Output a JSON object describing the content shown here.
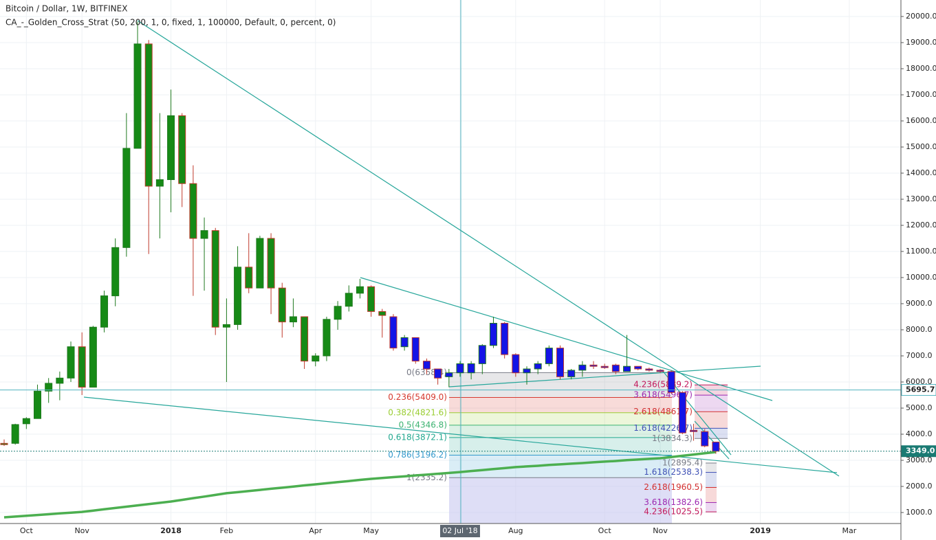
{
  "chart_data": {
    "type": "candlestick",
    "title": "Bitcoin / Dollar, 1W, BITFINEX",
    "subtitle": "CA_-_Golden_Cross_Strat (50, 200, 1, 0, fixed, 1, 100000, Default, 0, percent, 0)",
    "categories": [
      null,
      null,
      "Oct",
      null,
      null,
      null,
      null,
      "Nov",
      null,
      null,
      null,
      null,
      null,
      null,
      null,
      "2018",
      null,
      null,
      null,
      null,
      "Feb",
      null,
      null,
      null,
      null,
      null,
      null,
      null,
      "Apr",
      null,
      null,
      null,
      null,
      "May",
      null,
      null,
      null,
      null,
      null,
      null,
      null,
      "02 Jul '18",
      null,
      null,
      null,
      null,
      "Aug",
      null,
      null,
      null,
      null,
      null,
      null,
      null,
      "Oct",
      null,
      null,
      null,
      null,
      "Nov",
      null,
      null,
      null,
      null,
      null,
      null,
      null,
      null,
      "2019",
      null,
      null,
      null,
      null,
      null,
      null,
      null,
      "Mar",
      null,
      null,
      null
    ],
    "open": [
      3650,
      3650,
      4400,
      4600,
      5650,
      5950,
      6150,
      7350,
      5800,
      8100,
      9300,
      11150,
      14950,
      18950,
      13500,
      13750,
      16200,
      13600,
      11500,
      11800,
      8100,
      8200,
      10400,
      9600,
      11500,
      9600,
      8300,
      8500,
      6800,
      7000,
      8400,
      8900,
      9400,
      9650,
      8700,
      8500,
      7350,
      7700,
      6800,
      6500,
      6200,
      6350,
      6350,
      6700,
      7400,
      8250,
      7050,
      6350,
      6500,
      6700,
      7300,
      6200,
      6450,
      6650,
      6600,
      6650,
      6400,
      6600,
      6500,
      6450,
      6400,
      5600,
      4150,
      4100,
      3700,
      null,
      null,
      null,
      null,
      null,
      null,
      null,
      null,
      null,
      null,
      null,
      null,
      null,
      null,
      null
    ],
    "high": [
      3800,
      4400,
      4650,
      5900,
      6150,
      6400,
      7550,
      7900,
      8150,
      9500,
      11500,
      16300,
      19800,
      19100,
      16300,
      17200,
      16300,
      14300,
      12300,
      11900,
      9200,
      11200,
      11700,
      11600,
      11700,
      9800,
      9200,
      8500,
      7100,
      8500,
      9100,
      9700,
      9950,
      9700,
      8800,
      8600,
      7800,
      7700,
      6900,
      6500,
      6500,
      6800,
      6800,
      7450,
      8500,
      8300,
      7100,
      6600,
      6800,
      7400,
      7400,
      6500,
      6800,
      6800,
      6700,
      6700,
      7800,
      6600,
      6550,
      6500,
      6450,
      5650,
      4400,
      4200,
      3700,
      null,
      null,
      null,
      null,
      null,
      null,
      null,
      null,
      null,
      null,
      null,
      null,
      null,
      null,
      null
    ],
    "low": [
      3550,
      3600,
      4200,
      4600,
      5200,
      5300,
      6000,
      5500,
      5800,
      7900,
      8900,
      10800,
      14950,
      10900,
      11500,
      12500,
      12700,
      9300,
      9500,
      7800,
      6000,
      8000,
      9400,
      9600,
      8600,
      7700,
      8100,
      6500,
      6600,
      6800,
      8000,
      8700,
      9200,
      8500,
      7700,
      7200,
      7200,
      6700,
      6300,
      5900,
      5800,
      6200,
      6100,
      6300,
      7300,
      6900,
      6200,
      5900,
      6300,
      6600,
      6100,
      6100,
      6200,
      6500,
      6500,
      6300,
      6400,
      6450,
      6400,
      6350,
      5550,
      4000,
      3750,
      3500,
      3250,
      null,
      null,
      null,
      null,
      null,
      null,
      null,
      null,
      null,
      null,
      null,
      null,
      null,
      null,
      null
    ],
    "close": [
      3600,
      4370,
      4600,
      5650,
      5950,
      6150,
      7350,
      5800,
      8100,
      9300,
      11150,
      14950,
      18950,
      13500,
      13750,
      16200,
      13600,
      11500,
      11800,
      8100,
      8200,
      10400,
      9600,
      11500,
      9600,
      8300,
      8500,
      6800,
      7000,
      8400,
      8900,
      9400,
      9650,
      8700,
      8550,
      7300,
      7700,
      6800,
      6500,
      6150,
      6350,
      6700,
      6700,
      7400,
      8250,
      7050,
      6350,
      6500,
      6700,
      7300,
      6200,
      6450,
      6650,
      6600,
      6550,
      6400,
      6600,
      6500,
      6450,
      6400,
      5600,
      4050,
      4100,
      3550,
      3349,
      null,
      null,
      null,
      null,
      null,
      null,
      null,
      null,
      null,
      null,
      null,
      null,
      null,
      null,
      null
    ],
    "colors": [
      "#168a16",
      "#168a16",
      "#168a16",
      "#168a16",
      "#168a16",
      "#168a16",
      "#168a16",
      "#168a16",
      "#168a16",
      "#168a16",
      "#168a16",
      "#168a16",
      "#168a16",
      "#168a16",
      "#168a16",
      "#168a16",
      "#168a16",
      "#168a16",
      "#168a16",
      "#168a16",
      "#168a16",
      "#168a16",
      "#168a16",
      "#168a16",
      "#168a16",
      "#168a16",
      "#168a16",
      "#168a16",
      "#168a16",
      "#168a16",
      "#168a16",
      "#168a16",
      "#168a16",
      "#168a16",
      "#168a16",
      "#1414e6",
      "#1414e6",
      "#1414e6",
      "#1414e6",
      "#1414e6",
      "#1414e6",
      "#1414e6",
      "#1414e6",
      "#1414e6",
      "#1414e6",
      "#1414e6",
      "#1414e6",
      "#1414e6",
      "#1414e6",
      "#1414e6",
      "#1414e6",
      "#1414e6",
      "#1414e6",
      "#1414e6",
      "#1414e6",
      "#1414e6",
      "#1414e6",
      "#1414e6",
      "#1414e6",
      "#1414e6",
      "#1414e6",
      "#1414e6",
      "#1414e6",
      "#1414e6",
      "#1414e6",
      null,
      null,
      null,
      null,
      null,
      null,
      null,
      null,
      null,
      null,
      null,
      null,
      null,
      null,
      null
    ],
    "ma": {
      "color": "#4caf50",
      "values": [
        815,
        845,
        875,
        905,
        935,
        965,
        995,
        1025,
        1075,
        1125,
        1175,
        1225,
        1275,
        1320,
        1370,
        1420,
        1485,
        1550,
        1610,
        1675,
        1740,
        1780,
        1825,
        1865,
        1910,
        1950,
        1995,
        2040,
        2080,
        2120,
        2165,
        2205,
        2250,
        2290,
        2320,
        2355,
        2385,
        2420,
        2450,
        2485,
        2515,
        2550,
        2590,
        2625,
        2665,
        2700,
        2740,
        2765,
        2790,
        2820,
        2845,
        2870,
        2895,
        2925,
        2950,
        2975,
        3005,
        3030,
        3055,
        3080,
        3125,
        3175,
        3220,
        3270,
        3315,
        null,
        null,
        null,
        null,
        null,
        null,
        null,
        null,
        null,
        null,
        null,
        null,
        null,
        null,
        null
      ]
    },
    "ylim": [
      579,
      20632
    ],
    "yticks": [
      {
        "value": 1000,
        "label": "1000.0"
      },
      {
        "value": 2000,
        "label": "2000.0"
      },
      {
        "value": 3000,
        "label": "3000.0"
      },
      {
        "value": 4000,
        "label": "4000.0"
      },
      {
        "value": 5000,
        "label": "5000.0"
      },
      {
        "value": 6000,
        "label": "6000.0"
      },
      {
        "value": 7000,
        "label": "7000.0"
      },
      {
        "value": 8000,
        "label": "8000.0"
      },
      {
        "value": 9000,
        "label": "9000.0"
      },
      {
        "value": 10000,
        "label": "10000.0"
      },
      {
        "value": 11000,
        "label": "11000.0"
      },
      {
        "value": 12000,
        "label": "12000.0"
      },
      {
        "value": 13000,
        "label": "13000.0"
      },
      {
        "value": 14000,
        "label": "14000.0"
      },
      {
        "value": 15000,
        "label": "15000.0"
      },
      {
        "value": 16000,
        "label": "16000.0"
      },
      {
        "value": 17000,
        "label": "17000.0"
      },
      {
        "value": 18000,
        "label": "18000.0"
      },
      {
        "value": 19000,
        "label": "19000.0"
      },
      {
        "value": 20000,
        "label": "20000.0"
      }
    ],
    "grid": true,
    "fib_sets": [
      {
        "levels": [
          {
            "value": 6358.4,
            "label": "0(6358.4)",
            "color": "#787b86"
          },
          {
            "value": 5409.0,
            "label": "0.236(5409.0)",
            "color": "#d63a2f"
          },
          {
            "value": 4821.6,
            "label": "0.382(4821.6)",
            "color": "#9acd32"
          },
          {
            "value": 4346.8,
            "label": "0.5(4346.8)",
            "color": "#3cb371"
          },
          {
            "value": 3872.1,
            "label": "0.618(3872.1)",
            "color": "#22a88f"
          },
          {
            "value": 3196.2,
            "label": "0.786(3196.2)",
            "color": "#3399cc"
          },
          {
            "value": 2335.2,
            "label": "1(2335.2)",
            "color": "#787b86"
          }
        ]
      },
      {
        "levels": [
          {
            "value": 5889.2,
            "label": "4.236(5889.2)",
            "color": "#c2185b"
          },
          {
            "value": 5496.7,
            "label": "3.618(5496.7)",
            "color": "#9c27b0"
          },
          {
            "value": 4861.7,
            "label": "2.618(4861.7)",
            "color": "#d32f2f"
          },
          {
            "value": 4226.7,
            "label": "1.618(4226.7)",
            "color": "#3f51b5"
          },
          {
            "value": 3834.3,
            "label": "1(3834.3)",
            "color": "#787b86"
          }
        ]
      },
      {
        "levels": [
          {
            "value": 2895.4,
            "label": "1(2895.4)",
            "color": "#787b86"
          },
          {
            "value": 2538.3,
            "label": "1.618(2538.3)",
            "color": "#3f51b5"
          },
          {
            "value": 1960.5,
            "label": "2.618(1960.5)",
            "color": "#d32f2f"
          },
          {
            "value": 1382.6,
            "label": "3.618(1382.6)",
            "color": "#9c27b0"
          },
          {
            "value": 1025.5,
            "label": "4.236(1025.5)",
            "color": "#c2185b"
          }
        ]
      }
    ],
    "price_lines": [
      {
        "value": 5695.7,
        "color": "#4fb3bf"
      },
      {
        "value": 3349,
        "label": "3349.0",
        "color": "#1a7a73"
      }
    ]
  }
}
